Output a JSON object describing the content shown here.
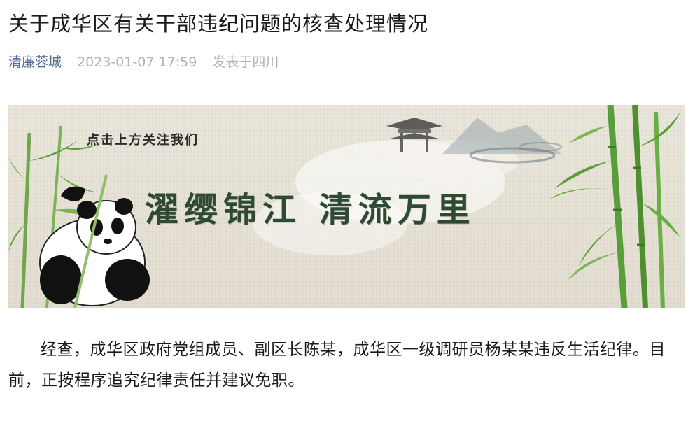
{
  "article": {
    "title": "关于成华区有关干部违纪问题的核查处理情况",
    "account": "清廉蓉城",
    "date": "2023-01-07 17:59",
    "location": "发表于四川",
    "body": "经查，成华区政府党组成员、副区长陈某，成华区一级调研员杨某某违反生活纪律。目前，正按程序追究纪律责任并建议免职。"
  },
  "banner": {
    "subtitle": "点击上方关注我们",
    "slogan": "濯缨锦江 清流万里"
  },
  "colors": {
    "account": "#576b95",
    "meta": "#b2b2b2",
    "slogan": "#2e4a33",
    "bamboo": "#5a9e3a"
  }
}
